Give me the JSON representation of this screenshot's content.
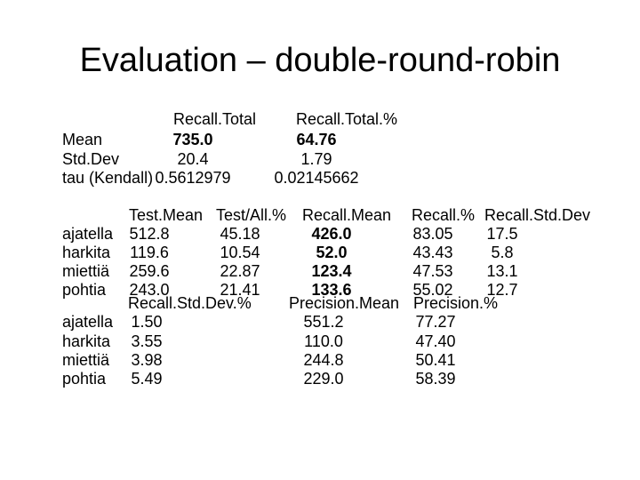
{
  "title": "Evaluation – double-round-robin",
  "summary": {
    "headers": [
      "Recall.Total",
      "Recall.Total.%"
    ],
    "rows": [
      [
        "Mean",
        "735.0",
        "64.76"
      ],
      [
        "Std.Dev",
        "20.4",
        "1.79"
      ],
      [
        "tau (Kendall)",
        "0.5612979",
        "0.02145662"
      ]
    ]
  },
  "table1": {
    "headers": [
      "Test.Mean",
      "Test/All.%",
      "Recall.Mean",
      "Recall.%",
      "Recall.Std.Dev"
    ],
    "rows": [
      [
        "ajatella",
        "512.8",
        "45.18",
        "426.0",
        "83.05",
        "17.5"
      ],
      [
        "harkita",
        "119.6",
        "10.54",
        "52.0",
        "43.43",
        "5.8"
      ],
      [
        "miettiä",
        "259.6",
        "22.87",
        "123.4",
        "47.53",
        "13.1"
      ],
      [
        "pohtia",
        "243.0",
        "21.41",
        "133.6",
        "55.02",
        "12.7"
      ]
    ]
  },
  "table2": {
    "headers": [
      "Recall.Std.Dev.%",
      "Precision.Mean",
      "Precision.%"
    ],
    "rows": [
      [
        "ajatella",
        "1.50",
        "551.2",
        "77.27"
      ],
      [
        "harkita",
        "3.55",
        "110.0",
        "47.40"
      ],
      [
        "miettiä",
        "3.98",
        "244.8",
        "50.41"
      ],
      [
        "pohtia",
        "5.49",
        "229.0",
        "58.39"
      ]
    ]
  }
}
